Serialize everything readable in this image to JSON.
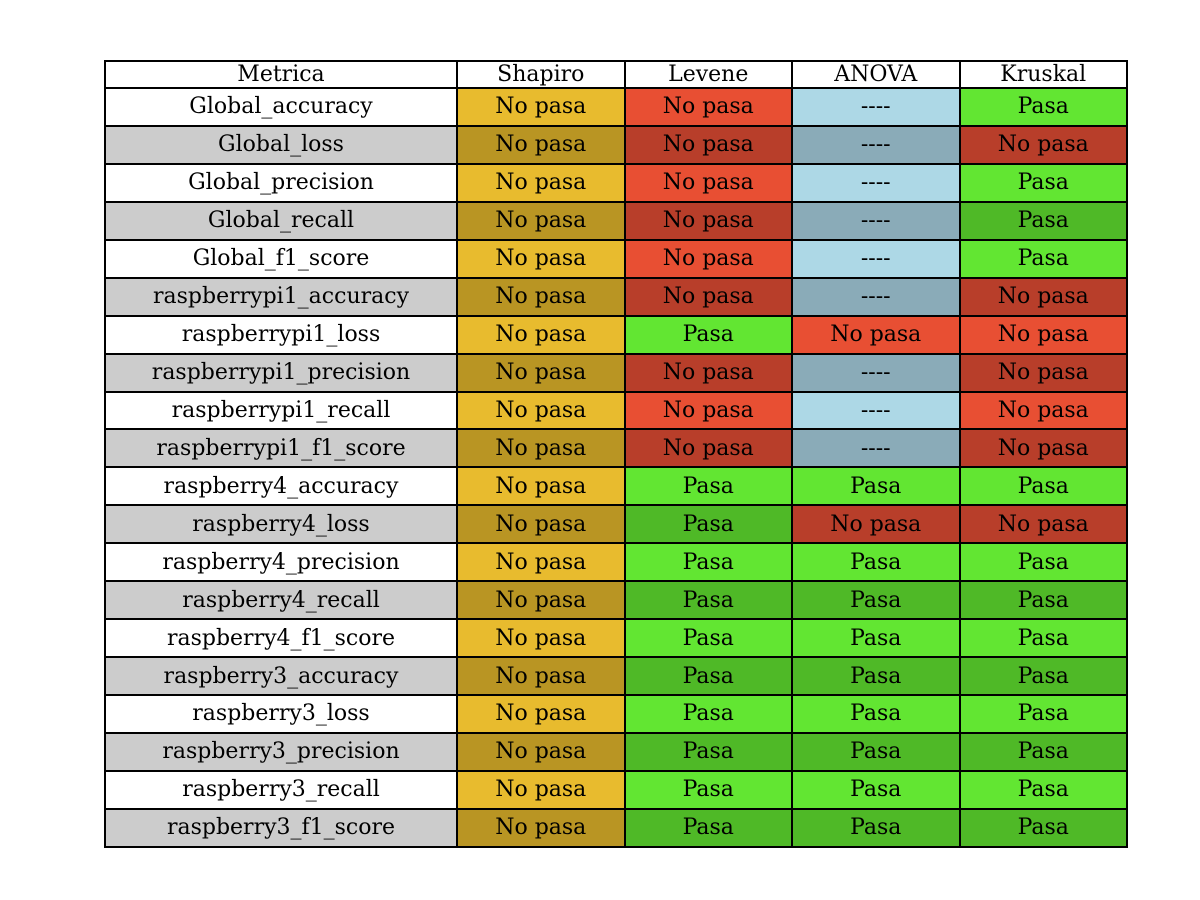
{
  "chart_data": {
    "type": "table",
    "columns": [
      "Metrica",
      "Shapiro",
      "Levene",
      "ANOVA",
      "Kruskal"
    ],
    "rows": [
      {
        "metric": "Global_accuracy",
        "shapiro": "No pasa",
        "levene": "No pasa",
        "anova": "----",
        "kruskal": "Pasa"
      },
      {
        "metric": "Global_loss",
        "shapiro": "No pasa",
        "levene": "No pasa",
        "anova": "----",
        "kruskal": "No pasa"
      },
      {
        "metric": "Global_precision",
        "shapiro": "No pasa",
        "levene": "No pasa",
        "anova": "----",
        "kruskal": "Pasa"
      },
      {
        "metric": "Global_recall",
        "shapiro": "No pasa",
        "levene": "No pasa",
        "anova": "----",
        "kruskal": "Pasa"
      },
      {
        "metric": "Global_f1_score",
        "shapiro": "No pasa",
        "levene": "No pasa",
        "anova": "----",
        "kruskal": "Pasa"
      },
      {
        "metric": "raspberrypi1_accuracy",
        "shapiro": "No pasa",
        "levene": "No pasa",
        "anova": "----",
        "kruskal": "No pasa"
      },
      {
        "metric": "raspberrypi1_loss",
        "shapiro": "No pasa",
        "levene": "Pasa",
        "anova": "No pasa",
        "kruskal": "No pasa"
      },
      {
        "metric": "raspberrypi1_precision",
        "shapiro": "No pasa",
        "levene": "No pasa",
        "anova": "----",
        "kruskal": "No pasa"
      },
      {
        "metric": "raspberrypi1_recall",
        "shapiro": "No pasa",
        "levene": "No pasa",
        "anova": "----",
        "kruskal": "No pasa"
      },
      {
        "metric": "raspberrypi1_f1_score",
        "shapiro": "No pasa",
        "levene": "No pasa",
        "anova": "----",
        "kruskal": "No pasa"
      },
      {
        "metric": "raspberry4_accuracy",
        "shapiro": "No pasa",
        "levene": "Pasa",
        "anova": "Pasa",
        "kruskal": "Pasa"
      },
      {
        "metric": "raspberry4_loss",
        "shapiro": "No pasa",
        "levene": "Pasa",
        "anova": "No pasa",
        "kruskal": "No pasa"
      },
      {
        "metric": "raspberry4_precision",
        "shapiro": "No pasa",
        "levene": "Pasa",
        "anova": "Pasa",
        "kruskal": "Pasa"
      },
      {
        "metric": "raspberry4_recall",
        "shapiro": "No pasa",
        "levene": "Pasa",
        "anova": "Pasa",
        "kruskal": "Pasa"
      },
      {
        "metric": "raspberry4_f1_score",
        "shapiro": "No pasa",
        "levene": "Pasa",
        "anova": "Pasa",
        "kruskal": "Pasa"
      },
      {
        "metric": "raspberry3_accuracy",
        "shapiro": "No pasa",
        "levene": "Pasa",
        "anova": "Pasa",
        "kruskal": "Pasa"
      },
      {
        "metric": "raspberry3_loss",
        "shapiro": "No pasa",
        "levene": "Pasa",
        "anova": "Pasa",
        "kruskal": "Pasa"
      },
      {
        "metric": "raspberry3_precision",
        "shapiro": "No pasa",
        "levene": "Pasa",
        "anova": "Pasa",
        "kruskal": "Pasa"
      },
      {
        "metric": "raspberry3_recall",
        "shapiro": "No pasa",
        "levene": "Pasa",
        "anova": "Pasa",
        "kruskal": "Pasa"
      },
      {
        "metric": "raspberry3_f1_score",
        "shapiro": "No pasa",
        "levene": "Pasa",
        "anova": "Pasa",
        "kruskal": "Pasa"
      }
    ],
    "colors": {
      "header": "#ffffff",
      "row_light": "#ffffff",
      "row_dark": "#cccccc",
      "shapiro_light": "#e8bb2e",
      "shapiro_dark": "#b99523",
      "fail_light": "#e84f33",
      "fail_dark": "#b83e2a",
      "pass_light": "#62e632",
      "pass_dark": "#4fb927",
      "na_light": "#add8e6",
      "na_dark": "#8aabb8"
    }
  }
}
